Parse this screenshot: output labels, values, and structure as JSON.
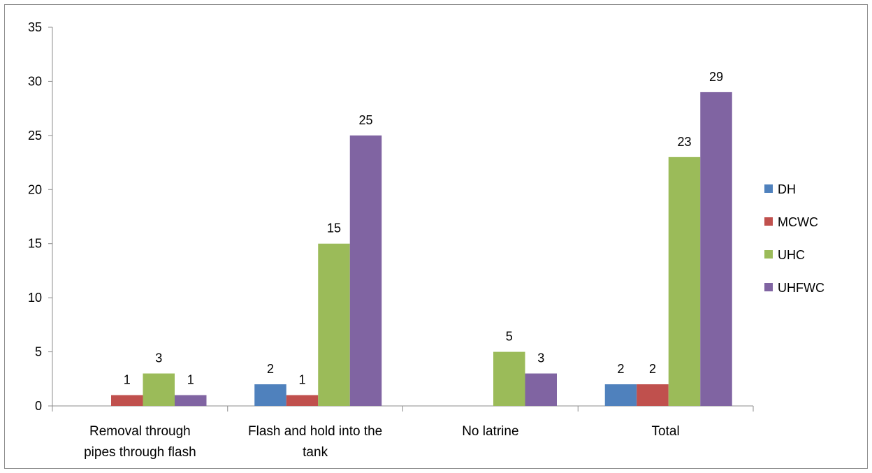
{
  "chart_data": {
    "type": "bar",
    "categories": [
      "Removal through pipes through flash",
      "Flash and hold into the tank",
      "No latrine",
      "Total"
    ],
    "series": [
      {
        "name": "DH",
        "color": "#4f81bd",
        "values": [
          null,
          2,
          null,
          2
        ]
      },
      {
        "name": "MCWC",
        "color": "#c0504d",
        "values": [
          1,
          1,
          null,
          2
        ]
      },
      {
        "name": "UHC",
        "color": "#9bbb59",
        "values": [
          3,
          15,
          5,
          23
        ]
      },
      {
        "name": "UHFWC",
        "color": "#8064a2",
        "values": [
          1,
          25,
          3,
          29
        ]
      }
    ],
    "ylim": [
      0,
      35
    ],
    "yticks": [
      0,
      5,
      10,
      15,
      20,
      25,
      30,
      35
    ],
    "grid": false,
    "data_labels": true,
    "legend_position": "right"
  }
}
